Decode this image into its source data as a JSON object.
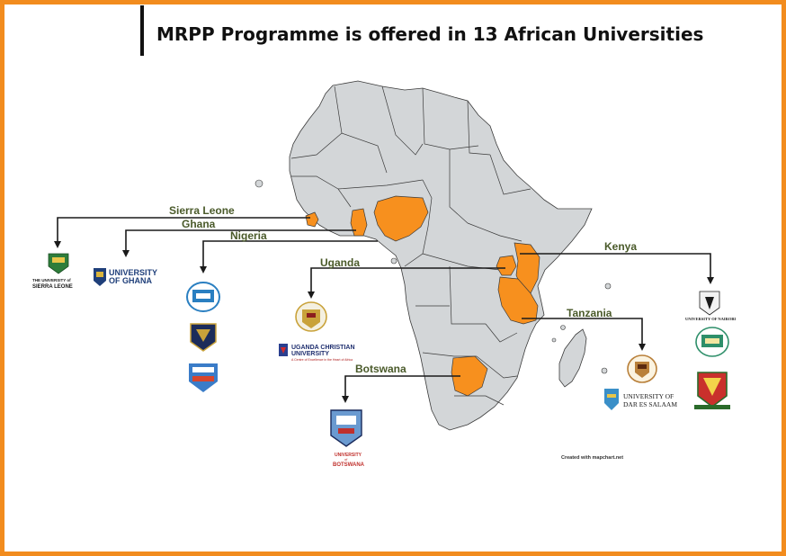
{
  "title": "MRPP Programme is offered in 13 African Universities",
  "credit": "Created with mapchart.net",
  "colors": {
    "frame": "#f28c1e",
    "highlight": "#f7901e",
    "land": "#d3d6d8",
    "border": "#3b3b3b"
  },
  "countries": {
    "sierra_leone": "Sierra Leone",
    "ghana": "Ghana",
    "nigeria": "Nigeria",
    "uganda": "Uganda",
    "kenya": "Kenya",
    "tanzania": "Tanzania",
    "botswana": "Botswana"
  },
  "logos": {
    "sierra_leone": {
      "line1": "THE UNIVERSITY of",
      "line2": "SIERRA LEONE"
    },
    "ghana": {
      "line1": "UNIVERSITY",
      "line2": "OF GHANA"
    },
    "uganda_christian": {
      "line1": "UGANDA CHRISTIAN",
      "line2": "UNIVERSITY",
      "line3": "A Centre of Excellence in the Heart of Africa"
    },
    "nairobi": {
      "line1": "UNIVERSITY OF NAIROBI"
    },
    "dar_es_salaam": {
      "line1": "UNIVERSITY OF",
      "line2": "DAR ES SALAAM"
    },
    "botswana": {
      "line1": "UNIVERSITY",
      "line2": "of",
      "line3": "BOTSWANA"
    }
  }
}
